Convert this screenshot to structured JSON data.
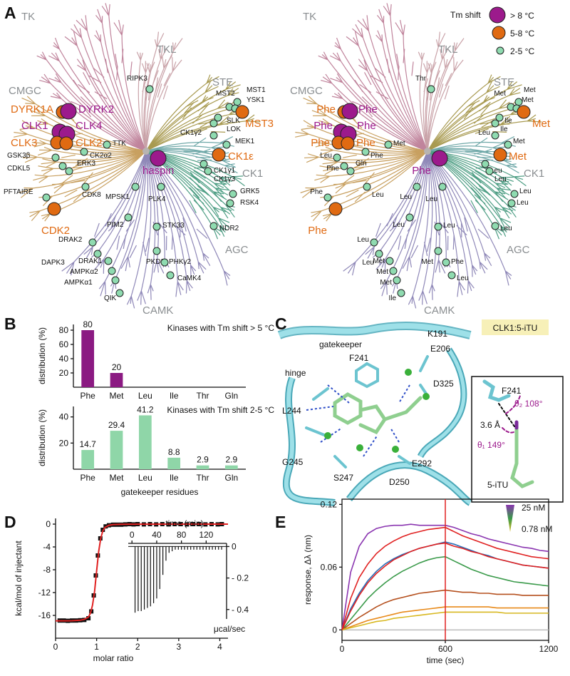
{
  "panels": [
    "A",
    "B",
    "C",
    "D",
    "E"
  ],
  "panel_a": {
    "legend": {
      "title": "Tm shift",
      "items": [
        "> 8 °C",
        "5-8 °C",
        "2-5 °C"
      ],
      "colors": [
        "#9c1a8c",
        "#e06a12",
        "#8fdbb0"
      ]
    },
    "groups": [
      "TK",
      "TKL",
      "STE",
      "CMGC",
      "CK1",
      "AGC",
      "CAMK"
    ],
    "kinases": [
      {
        "name": "RIPK3",
        "gatekeeper": "Thr",
        "shift": "2-5 °C"
      },
      {
        "name": "MST2",
        "gatekeeper": "Met",
        "shift": "2-5 °C"
      },
      {
        "name": "MST1",
        "gatekeeper": "Met",
        "shift": "2-5 °C"
      },
      {
        "name": "YSK1",
        "gatekeeper": "Met",
        "shift": "2-5 °C"
      },
      {
        "name": "MST3",
        "gatekeeper": "Met",
        "shift": "5-8 °C"
      },
      {
        "name": "SLK",
        "gatekeeper": "Ile",
        "shift": "2-5 °C"
      },
      {
        "name": "LOK",
        "gatekeeper": "Ile",
        "shift": "2-5 °C"
      },
      {
        "name": "MEK1",
        "gatekeeper": "Met",
        "shift": "2-5 °C"
      },
      {
        "name": "CK1γ2",
        "gatekeeper": "Leu",
        "shift": "2-5 °C"
      },
      {
        "name": "CK1ε",
        "gatekeeper": "Met",
        "shift": "5-8 °C"
      },
      {
        "name": "CK1γ1",
        "gatekeeper": "Leu",
        "shift": "2-5 °C"
      },
      {
        "name": "CK1γ3",
        "gatekeeper": "Leu",
        "shift": "2-5 °C"
      },
      {
        "name": "DYRK1A",
        "gatekeeper": "Phe",
        "shift": "5-8 °C"
      },
      {
        "name": "DYRK2",
        "gatekeeper": "Phe",
        "shift": "> 8 °C"
      },
      {
        "name": "CLK1",
        "gatekeeper": "Phe",
        "shift": "> 8 °C"
      },
      {
        "name": "CLK4",
        "gatekeeper": "Phe",
        "shift": "> 8 °C"
      },
      {
        "name": "CLK3",
        "gatekeeper": "Phe",
        "shift": "5-8 °C"
      },
      {
        "name": "CLK2",
        "gatekeeper": "Phe",
        "shift": "5-8 °C"
      },
      {
        "name": "TTK",
        "gatekeeper": "Met",
        "shift": "2-5 °C"
      },
      {
        "name": "CK2α2",
        "gatekeeper": "Phe",
        "shift": "2-5 °C"
      },
      {
        "name": "GSK3β",
        "gatekeeper": "Leu",
        "shift": "2-5 °C"
      },
      {
        "name": "CDKL5",
        "gatekeeper": "Phe",
        "shift": "2-5 °C"
      },
      {
        "name": "ERK3",
        "gatekeeper": "Gln",
        "shift": "2-5 °C"
      },
      {
        "name": "haspin",
        "gatekeeper": "Phe",
        "shift": "> 8 °C"
      },
      {
        "name": "PFTAIRE",
        "gatekeeper": "Phe",
        "shift": "2-5 °C"
      },
      {
        "name": "CDK8",
        "gatekeeper": "Leu",
        "shift": "2-5 °C"
      },
      {
        "name": "MPSK1",
        "gatekeeper": "Leu",
        "shift": "2-5 °C"
      },
      {
        "name": "PLK4",
        "gatekeeper": "Leu",
        "shift": "2-5 °C"
      },
      {
        "name": "GRK5",
        "gatekeeper": "Leu",
        "shift": "2-5 °C"
      },
      {
        "name": "RSK4",
        "gatekeeper": "Leu",
        "shift": "2-5 °C"
      },
      {
        "name": "CDK2",
        "gatekeeper": "Phe",
        "shift": "5-8 °C"
      },
      {
        "name": "PIM2",
        "gatekeeper": "Leu",
        "shift": "2-5 °C"
      },
      {
        "name": "STK33",
        "gatekeeper": "Leu",
        "shift": "2-5 °C"
      },
      {
        "name": "NDR2",
        "gatekeeper": "Leu",
        "shift": "2-5 °C"
      },
      {
        "name": "DRAK2",
        "gatekeeper": "Leu",
        "shift": "2-5 °C"
      },
      {
        "name": "DAPK3",
        "gatekeeper": "Leu",
        "shift": "2-5 °C"
      },
      {
        "name": "DRAK1",
        "gatekeeper": "Met",
        "shift": "2-5 °C"
      },
      {
        "name": "PKD3",
        "gatekeeper": "Met",
        "shift": "2-5 °C"
      },
      {
        "name": "PHKγ2",
        "gatekeeper": "Phe",
        "shift": "2-5 °C"
      },
      {
        "name": "AMPKα2",
        "gatekeeper": "Met",
        "shift": "2-5 °C"
      },
      {
        "name": "AMPKα1",
        "gatekeeper": "Met",
        "shift": "2-5 °C"
      },
      {
        "name": "CaMK4",
        "gatekeeper": "Leu",
        "shift": "2-5 °C"
      },
      {
        "name": "QIK",
        "gatekeeper": "Ile",
        "shift": "2-5 °C"
      }
    ]
  },
  "panel_c": {
    "title": "CLK1:5-iTU",
    "labels": [
      "gatekeeper",
      "F241",
      "K191",
      "E206",
      "hinge",
      "D325",
      "L244",
      "G245",
      "S247",
      "D250",
      "E292"
    ],
    "inset_labels": [
      "F241",
      "θ₂ 108°",
      "3.6 Å",
      "θ₁ 149°",
      "5-iTU"
    ]
  },
  "chart_data": [
    {
      "type": "bar",
      "title": "Kinases with Tm shift > 5 °C",
      "y_label": "distribution (%)",
      "categories": [
        "Phe",
        "Met",
        "Leu",
        "Ile",
        "Thr",
        "Gln"
      ],
      "values": [
        80,
        20,
        0,
        0,
        0,
        0
      ],
      "color": "#8b1a82",
      "ylim": [
        0,
        88
      ],
      "yticks": [
        20,
        40,
        60,
        80
      ]
    },
    {
      "type": "bar",
      "title": "Kinases with Tm shift 2-5 °C",
      "y_label": "distribution (%)",
      "x_label": "gatekeeper residues",
      "categories": [
        "Phe",
        "Met",
        "Leu",
        "Ile",
        "Thr",
        "Gln"
      ],
      "values": [
        14.7,
        29.4,
        41.2,
        8.8,
        2.9,
        2.9
      ],
      "color": "#8fd6a8",
      "ylim": [
        0,
        48
      ],
      "yticks": [
        20,
        40
      ]
    },
    {
      "type": "scatter",
      "x_label": "molar ratio",
      "y_label": "kcal/mol of injectant",
      "xlim": [
        0,
        4.2
      ],
      "xticks": [
        0,
        1,
        2,
        3,
        4
      ],
      "ylim": [
        -20,
        1
      ],
      "yticks": [
        0,
        -4,
        -8,
        -12,
        -16
      ],
      "series": [
        {
          "type": "scatter",
          "color": "#111111",
          "x": [
            0.1,
            0.2,
            0.3,
            0.4,
            0.5,
            0.6,
            0.7,
            0.8,
            0.87,
            0.93,
            0.98,
            1.03,
            1.09,
            1.15,
            1.22,
            1.3,
            1.4,
            1.5,
            1.6,
            1.7,
            1.8,
            1.9,
            2.0,
            2.15,
            2.3,
            2.45,
            2.6,
            2.75,
            2.9,
            3.05,
            3.2,
            3.35,
            3.5,
            3.65,
            3.8,
            3.95,
            4.05
          ],
          "values": [
            -16.9,
            -16.9,
            -16.95,
            -16.9,
            -16.9,
            -16.85,
            -16.8,
            -16.5,
            -15.3,
            -12.5,
            -9,
            -5.5,
            -2.5,
            -1,
            -0.4,
            -0.2,
            -0.1,
            -0.1,
            -0.1,
            -0.05,
            0,
            -0.05,
            0,
            -0.05,
            0,
            -0.05,
            0,
            -0.05,
            0,
            0,
            -0.05,
            0,
            0,
            -0.05,
            0,
            -0.05,
            0
          ]
        },
        {
          "type": "line",
          "color": "#e02020",
          "x": [
            0,
            0.2,
            0.4,
            0.6,
            0.7,
            0.8,
            0.85,
            0.9,
            0.95,
            1.0,
            1.05,
            1.1,
            1.15,
            1.2,
            1.3,
            1.4,
            1.6,
            2,
            3,
            4.2
          ],
          "values": [
            -16.95,
            -16.95,
            -16.93,
            -16.85,
            -16.7,
            -16.3,
            -15.6,
            -14.2,
            -11.8,
            -8.2,
            -4.8,
            -2.5,
            -1.2,
            -0.6,
            -0.2,
            -0.08,
            -0.03,
            -0.01,
            0,
            0
          ]
        }
      ]
    },
    {
      "type": "bar",
      "x_label": "time (min)",
      "y_label": "μcal/sec",
      "xlim": [
        -6,
        153
      ],
      "xticks": [
        0,
        40,
        80,
        120
      ],
      "ylim": [
        -0.46,
        0.02
      ],
      "yticks": [
        0,
        {
          "value": -0.2,
          "label": "- 0.2"
        },
        {
          "value": -0.4,
          "label": "- 0.4"
        }
      ],
      "color": "#111111",
      "x": [
        5,
        10,
        15,
        20,
        25,
        30,
        35,
        40,
        45,
        50,
        55,
        60,
        65,
        70,
        75,
        80,
        85,
        90,
        95,
        100,
        105,
        110,
        115,
        120,
        125,
        130,
        135,
        140,
        145
      ],
      "values": [
        -0.42,
        -0.41,
        -0.41,
        -0.4,
        -0.39,
        -0.38,
        -0.36,
        -0.33,
        -0.27,
        -0.18,
        -0.09,
        -0.04,
        -0.03,
        -0.02,
        -0.02,
        -0.02,
        -0.02,
        -0.02,
        -0.02,
        -0.02,
        -0.02,
        -0.02,
        -0.02,
        -0.02,
        -0.02,
        -0.02,
        -0.02,
        -0.02,
        -0.02
      ]
    },
    {
      "type": "line",
      "x_label": "time (sec)",
      "y_label": "response, Δλ (nm)",
      "xlim": [
        0,
        1200
      ],
      "xticks": [
        0,
        600,
        1200
      ],
      "ylim": [
        -0.01,
        0.125
      ],
      "yticks": [
        0,
        0.06,
        0.12
      ],
      "vline": 600,
      "vline_color": "#e02020",
      "legend": {
        "labels": [
          "25 nM",
          "0.78 nM"
        ]
      },
      "x": [
        0,
        50,
        100,
        150,
        200,
        250,
        300,
        350,
        400,
        450,
        500,
        550,
        600,
        650,
        700,
        750,
        800,
        850,
        900,
        950,
        1000,
        1050,
        1100,
        1150,
        1200
      ],
      "series": [
        {
          "color": "#8a35b0",
          "values": [
            0,
            0.055,
            0.08,
            0.092,
            0.097,
            0.099,
            0.1,
            0.1,
            0.101,
            0.1,
            0.1,
            0.1,
            0.1,
            0.098,
            0.095,
            0.092,
            0.09,
            0.087,
            0.085,
            0.083,
            0.081,
            0.079,
            0.078,
            0.076,
            0.075
          ]
        },
        {
          "color": "#2a6fb8",
          "values": [
            0,
            0.02,
            0.035,
            0.047,
            0.056,
            0.063,
            0.068,
            0.072,
            0.075,
            0.078,
            0.08,
            0.082,
            0.084,
            0.082,
            0.079,
            0.076,
            0.073,
            0.071,
            0.068,
            0.066,
            0.064,
            0.062,
            0.061,
            0.06,
            0.059
          ]
        },
        {
          "color": "#3a9a4a",
          "values": [
            0,
            0.01,
            0.02,
            0.03,
            0.038,
            0.045,
            0.051,
            0.056,
            0.06,
            0.064,
            0.067,
            0.069,
            0.07,
            0.066,
            0.062,
            0.058,
            0.055,
            0.052,
            0.05,
            0.048,
            0.046,
            0.045,
            0.044,
            0.043,
            0.042
          ]
        },
        {
          "color": "#b5501e",
          "values": [
            0,
            0.006,
            0.012,
            0.017,
            0.022,
            0.026,
            0.029,
            0.031,
            0.033,
            0.035,
            0.036,
            0.037,
            0.038,
            0.037,
            0.036,
            0.036,
            0.035,
            0.035,
            0.034,
            0.034,
            0.034,
            0.033,
            0.033,
            0.033,
            0.033
          ]
        },
        {
          "color": "#e88a1a",
          "values": [
            0,
            0.003,
            0.006,
            0.009,
            0.011,
            0.013,
            0.015,
            0.017,
            0.018,
            0.019,
            0.02,
            0.021,
            0.022,
            0.022,
            0.022,
            0.022,
            0.022,
            0.022,
            0.021,
            0.021,
            0.021,
            0.021,
            0.021,
            0.021,
            0.021
          ]
        },
        {
          "color": "#d8b820",
          "values": [
            0,
            0.002,
            0.004,
            0.006,
            0.008,
            0.009,
            0.011,
            0.012,
            0.013,
            0.014,
            0.015,
            0.016,
            0.017,
            0.017,
            0.017,
            0.017,
            0.017,
            0.017,
            0.017,
            0.016,
            0.016,
            0.016,
            0.016,
            0.016,
            0.016
          ]
        },
        {
          "color": "#e02020",
          "values": [
            0,
            0.03,
            0.05,
            0.063,
            0.073,
            0.08,
            0.085,
            0.089,
            0.092,
            0.094,
            0.096,
            0.097,
            0.098,
            0.094,
            0.09,
            0.087,
            0.084,
            0.081,
            0.078,
            0.076,
            0.074,
            0.072,
            0.07,
            0.069,
            0.068
          ]
        },
        {
          "color": "#e02020",
          "values": [
            0,
            0.018,
            0.033,
            0.045,
            0.054,
            0.061,
            0.067,
            0.071,
            0.075,
            0.078,
            0.08,
            0.082,
            0.083,
            0.08,
            0.078,
            0.075,
            0.073,
            0.07,
            0.068,
            0.066,
            0.064,
            0.062,
            0.061,
            0.06,
            0.059
          ]
        }
      ]
    }
  ]
}
